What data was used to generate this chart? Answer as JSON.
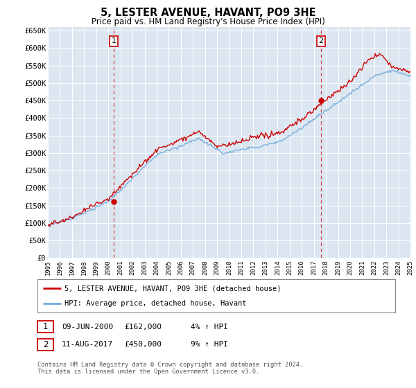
{
  "title": "5, LESTER AVENUE, HAVANT, PO9 3HE",
  "subtitle": "Price paid vs. HM Land Registry's House Price Index (HPI)",
  "plot_bg_color": "#dce6f1",
  "ylim": [
    0,
    660000
  ],
  "yticks": [
    0,
    50000,
    100000,
    150000,
    200000,
    250000,
    300000,
    350000,
    400000,
    450000,
    500000,
    550000,
    600000,
    650000
  ],
  "ytick_labels": [
    "£0",
    "£50K",
    "£100K",
    "£150K",
    "£200K",
    "£250K",
    "£300K",
    "£350K",
    "£400K",
    "£450K",
    "£500K",
    "£550K",
    "£600K",
    "£650K"
  ],
  "hpi_color": "#6fa8dc",
  "price_color": "#cc0000",
  "vline_color": "#cc0000",
  "annotation_box_color": "#cc0000",
  "sale1_year": 2000.44,
  "sale1_price": 162000,
  "sale1_label": "1",
  "sale2_year": 2017.6,
  "sale2_price": 450000,
  "sale2_label": "2",
  "legend_line1": "5, LESTER AVENUE, HAVANT, PO9 3HE (detached house)",
  "legend_line2": "HPI: Average price, detached house, Havant",
  "footer": "Contains HM Land Registry data © Crown copyright and database right 2024.\nThis data is licensed under the Open Government Licence v3.0.",
  "xmin": 1995,
  "xmax": 2025,
  "note1_date": "09-JUN-2000",
  "note1_price": "£162,000",
  "note1_pct": "4% ↑ HPI",
  "note2_date": "11-AUG-2017",
  "note2_price": "£450,000",
  "note2_pct": "9% ↑ HPI"
}
